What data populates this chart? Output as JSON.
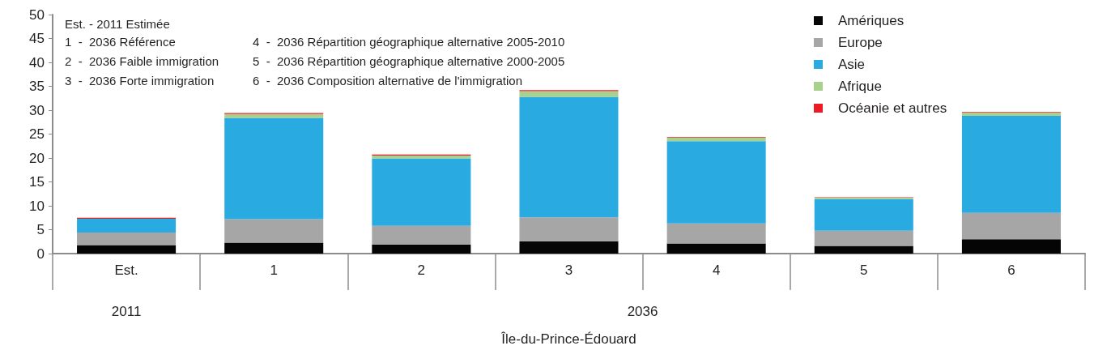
{
  "chart_data": {
    "type": "bar",
    "stacked": true,
    "xlabel": "Île-du-Prince-Édouard",
    "categories": [
      "Est.",
      "1",
      "2",
      "3",
      "4",
      "5",
      "6"
    ],
    "series": [
      {
        "name": "Amériques",
        "color": "#050505",
        "values": [
          1.8,
          2.3,
          1.9,
          2.6,
          2.1,
          1.6,
          3.0
        ]
      },
      {
        "name": "Europe",
        "color": "#a6a6a6",
        "values": [
          2.6,
          4.9,
          3.9,
          5.0,
          4.2,
          3.2,
          5.5
        ]
      },
      {
        "name": "Asie",
        "color": "#29abe2",
        "values": [
          2.9,
          21.2,
          14.1,
          25.2,
          17.2,
          6.6,
          20.3
        ]
      },
      {
        "name": "Afrique",
        "color": "#a9d18e",
        "values": [
          0,
          0.8,
          0.6,
          1.2,
          0.8,
          0.3,
          0.7
        ]
      },
      {
        "name": "Océanie et autres",
        "color": "#ed1c24",
        "values": [
          0.2,
          0.2,
          0.2,
          0.2,
          0.1,
          0.1,
          0.1
        ]
      }
    ],
    "ylim": [
      0,
      50
    ],
    "yticks": [
      0,
      5,
      10,
      15,
      20,
      25,
      30,
      35,
      40,
      45,
      50
    ],
    "grid": false,
    "legend": "top right",
    "annotations": [
      "Est. - 2011 Estimée",
      "1  -  2036 Référence",
      "2  -  2036 Faible immigration",
      "3  -  2036 Forte immigration",
      "4  -  2036 Répartition géographique alternative 2005-2010",
      "5  -  2036 Répartition géographique alternative 2000-2005",
      "6  -  2036 Composition alternative de l'immigration",
      "2011",
      "2036"
    ]
  }
}
